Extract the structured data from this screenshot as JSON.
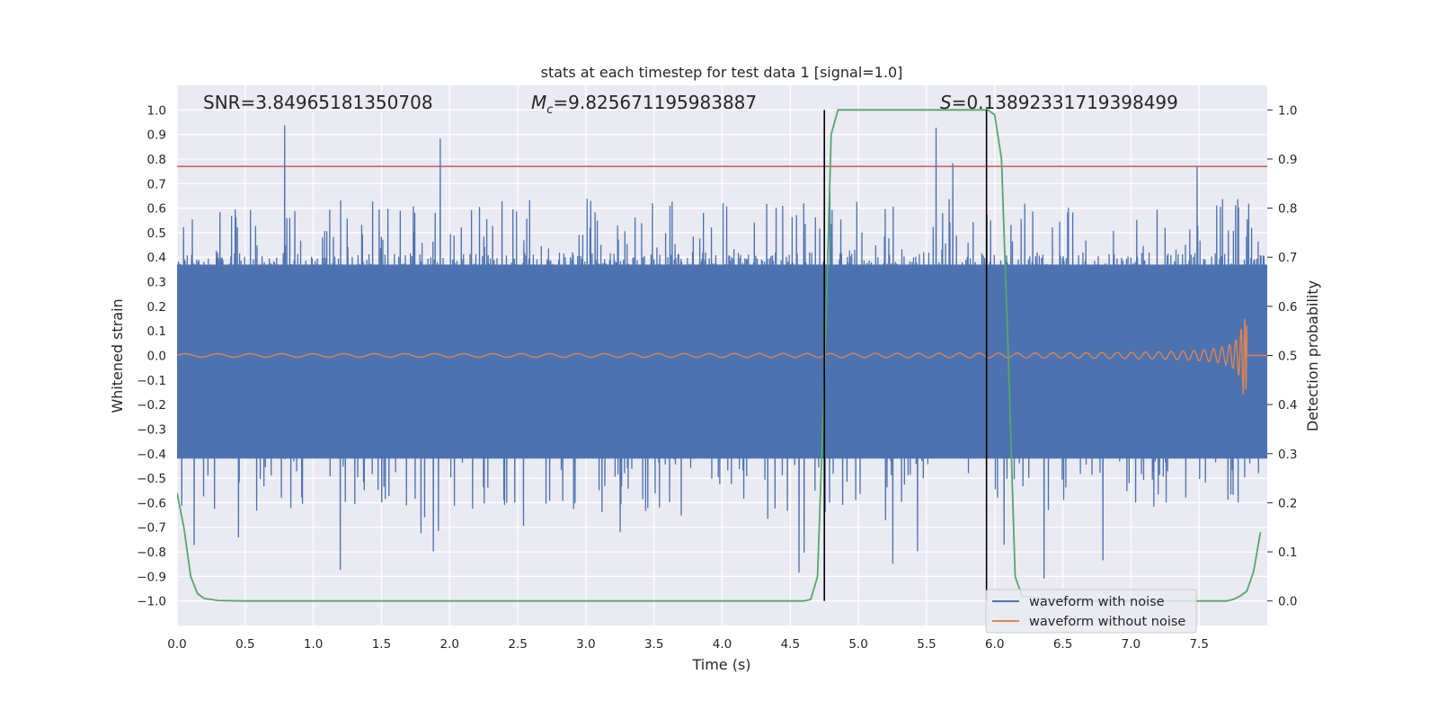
{
  "chart_data": {
    "type": "line",
    "title": "stats at each timestep for test data 1 [signal=1.0]",
    "xlabel": "Time (s)",
    "ylabel": "Whitened strain",
    "ylabel_right": "Detection probability",
    "xlim": [
      0.0,
      8.0
    ],
    "ylim": [
      -1.1,
      1.1
    ],
    "ylim_right": [
      -0.05,
      1.05
    ],
    "x_ticks": [
      "0.0",
      "0.5",
      "1.0",
      "1.5",
      "2.0",
      "2.5",
      "3.0",
      "3.5",
      "4.0",
      "4.5",
      "5.0",
      "5.5",
      "6.0",
      "6.5",
      "7.0",
      "7.5"
    ],
    "y_ticks": [
      "1.0",
      "0.9",
      "0.8",
      "0.7",
      "0.6",
      "0.5",
      "0.4",
      "0.3",
      "0.2",
      "0.1",
      "0.0",
      "−0.1",
      "−0.2",
      "−0.3",
      "−0.4",
      "−0.5",
      "−0.6",
      "−0.7",
      "−0.8",
      "−0.9",
      "−1.0"
    ],
    "y_ticks_right": [
      "1.0",
      "0.9",
      "0.8",
      "0.7",
      "0.6",
      "0.5",
      "0.4",
      "0.3",
      "0.2",
      "0.1",
      "0.0"
    ],
    "grid": true,
    "legend_position": "bottom-right",
    "annotations": {
      "snr": "SNR=3.84965181350708",
      "mc_prefix": "M",
      "mc_sub": "c",
      "mc_value": "=9.825671195983887",
      "s_prefix": "S",
      "s_value": "=0.13892331719398499"
    },
    "series": [
      {
        "name": "waveform with noise",
        "color": "#4c72b0",
        "band_lower": -0.42,
        "band_upper": 0.37,
        "envelope_sample": [
          0.6,
          -0.7,
          0.5,
          -0.6,
          0.9,
          -1.0,
          0.97,
          -0.8,
          0.85,
          -0.9,
          0.83,
          -0.7,
          0.8,
          -0.82,
          0.85,
          -0.75,
          0.88,
          -0.93,
          0.95,
          -0.86,
          0.84,
          -0.9,
          0.95,
          -0.85,
          0.92,
          -0.8,
          0.8,
          -0.75
        ]
      },
      {
        "name": "waveform without noise",
        "color": "#dd8452",
        "description_peak_amplitude": 0.16,
        "merger_time": 7.85
      },
      {
        "name": "detection probability",
        "color": "#55a868",
        "axis": "right",
        "x": [
          0.0,
          0.05,
          0.1,
          0.15,
          0.2,
          0.3,
          0.5,
          1.0,
          2.0,
          3.0,
          4.0,
          4.5,
          4.6,
          4.65,
          4.7,
          4.75,
          4.8,
          4.85,
          5.0,
          5.5,
          5.8,
          5.9,
          5.95,
          6.0,
          6.05,
          6.1,
          6.15,
          6.2,
          6.5,
          7.0,
          7.5,
          7.7,
          7.75,
          7.8,
          7.85,
          7.9,
          7.95
        ],
        "y": [
          0.22,
          0.15,
          0.05,
          0.015,
          0.005,
          0.001,
          0.0,
          0.0,
          0.0,
          0.0,
          0.0,
          0.0,
          0.0,
          0.003,
          0.05,
          0.45,
          0.95,
          1.0,
          1.0,
          1.0,
          1.0,
          1.0,
          1.0,
          0.99,
          0.9,
          0.5,
          0.05,
          0.01,
          0.0,
          0.0,
          0.0,
          0.0,
          0.003,
          0.01,
          0.02,
          0.06,
          0.14
        ]
      }
    ],
    "hlines": [
      {
        "y": 0.77,
        "color": "#c44e52"
      }
    ],
    "vlines": [
      {
        "x": 4.75,
        "color": "#000000"
      },
      {
        "x": 5.94,
        "color": "#000000"
      }
    ]
  }
}
